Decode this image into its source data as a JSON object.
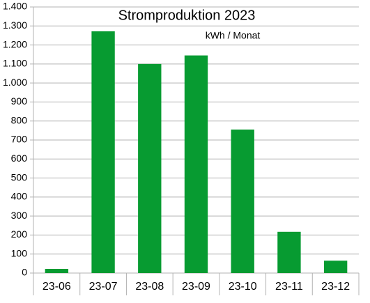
{
  "chart_data": {
    "type": "bar",
    "title": "Stromproduktion 2023",
    "subtitle": "kWh / Monat",
    "categories": [
      "23-06",
      "23-07",
      "23-08",
      "23-09",
      "23-10",
      "23-11",
      "23-12"
    ],
    "values": [
      22,
      1272,
      1100,
      1145,
      755,
      217,
      65
    ],
    "color": "#079b31",
    "ylim": [
      0,
      1400
    ],
    "yticks": [
      0,
      100,
      200,
      300,
      400,
      500,
      600,
      700,
      800,
      900,
      {
        "value": 1000,
        "label": "1.000"
      },
      {
        "value": 1100,
        "label": "1.100"
      },
      {
        "value": 1200,
        "label": "1.200"
      },
      {
        "value": 1300,
        "label": "1.300"
      },
      {
        "value": 1400,
        "label": "1.400"
      }
    ],
    "grid": true
  }
}
